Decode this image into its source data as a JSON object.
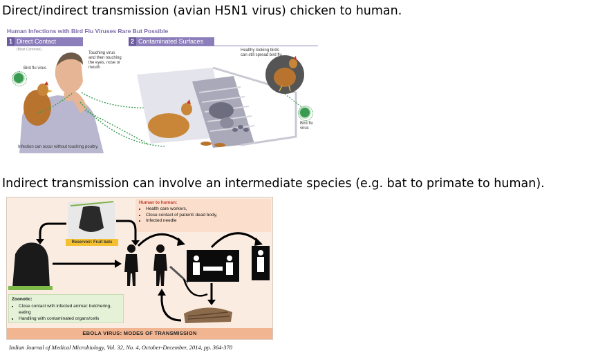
{
  "headings": {
    "first": "Direct/indirect transmission (avian H5N1 virus) chicken to human.",
    "second": "Indirect transmission can involve an intermediate species (e.g. bat to primate to human)."
  },
  "bird_flu": {
    "title": "Human Infections with Bird Flu Viruses Rare But Possible",
    "tab1_num": "1",
    "tab1_label": "Direct Contact",
    "tab1_sub": "(Most Common)",
    "tab2_num": "2",
    "tab2_label": "Contaminated Surfaces",
    "virus_label_left": "Bird flu virus",
    "touching_note": "Touching virus and then touching the eyes, nose or mouth",
    "healthy_note": "Healthy looking birds can still spread bird flu",
    "virus_label_right": "Bird flu virus",
    "footer_note": "Infection can occur without touching poultry."
  },
  "ebola": {
    "human_to_human_title": "Human to human:",
    "human_to_human_items": [
      "Health care workers,",
      "Close contact of patient/ dead body,",
      "Infected needle"
    ],
    "reservoir_label": "Reservoir: Fruit bats",
    "zoonotic_title": "Zoonotic:",
    "zoonotic_items": [
      "Close contact with infected animal: butchering, eating",
      "Handling with contaminated organs/cells"
    ],
    "banner": "EBOLA VIRUS: MODES OF TRANSMISSION"
  },
  "citation": "Indian Journal of Medical Microbiology, Vol. 32, No. 4, October-December, 2014, pp. 364-370",
  "colors": {
    "purple_accent": "#8c7dbb",
    "virus_green": "#3a9a52",
    "human_box": "#fbdfcc",
    "zoonotic_box": "#e5f2d8",
    "banner": "#f2b592",
    "reservoir": "#f4c030"
  }
}
